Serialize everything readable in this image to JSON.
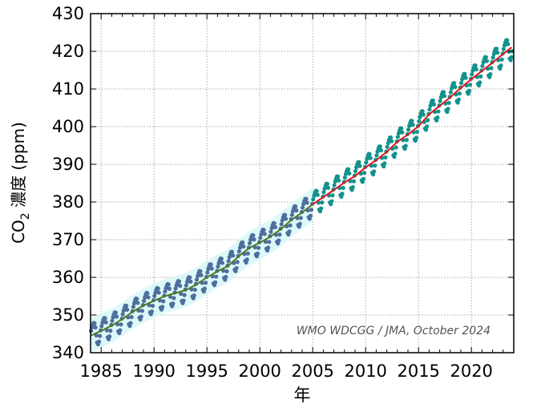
{
  "chart_data": {
    "type": "line",
    "title": "",
    "xlabel": "年",
    "ylabel_main": "CO",
    "ylabel_sub": "2",
    "ylabel_rest": " 濃度 (ppm)",
    "credit": "WMO WDCGG / JMA, October 2024",
    "xlim": [
      1984,
      2024
    ],
    "ylim": [
      340,
      430
    ],
    "grid": true,
    "xticks": [
      1985,
      1990,
      1995,
      2000,
      2005,
      2010,
      2015,
      2020
    ],
    "yticks": [
      340,
      350,
      360,
      370,
      380,
      390,
      400,
      410,
      420,
      430
    ],
    "colors": {
      "monthly_early": "#4e6f9c",
      "monthly_late": "#12928a",
      "band": "#d4f6f8",
      "trend_early": "#4d7a1f",
      "trend_late": "#e0141e"
    },
    "split_year": 2005,
    "trend_years": [
      1984,
      1985,
      1986,
      1987,
      1988,
      1989,
      1990,
      1991,
      1992,
      1993,
      1994,
      1995,
      1996,
      1997,
      1998,
      1999,
      2000,
      2001,
      2002,
      2003,
      2004,
      2005,
      2006,
      2007,
      2008,
      2009,
      2010,
      2011,
      2012,
      2013,
      2014,
      2015,
      2016,
      2017,
      2018,
      2019,
      2020,
      2021,
      2022,
      2023,
      2024
    ],
    "trend_values": [
      344.5,
      345.8,
      347.2,
      348.9,
      350.9,
      352.5,
      353.8,
      355.0,
      355.8,
      356.6,
      358.1,
      360.0,
      361.6,
      363.0,
      365.6,
      367.8,
      369.2,
      370.8,
      372.8,
      375.3,
      377.2,
      379.4,
      381.3,
      383.2,
      385.2,
      386.9,
      389.2,
      391.1,
      393.3,
      396.0,
      397.9,
      400.1,
      403.3,
      405.5,
      407.8,
      410.3,
      412.6,
      414.8,
      417.0,
      419.3,
      421.5
    ],
    "seasonal_cycle_monthly": [
      1.2,
      2.0,
      2.6,
      3.0,
      2.8,
      1.6,
      -0.6,
      -2.6,
      -3.2,
      -2.6,
      -1.2,
      0.2
    ]
  }
}
